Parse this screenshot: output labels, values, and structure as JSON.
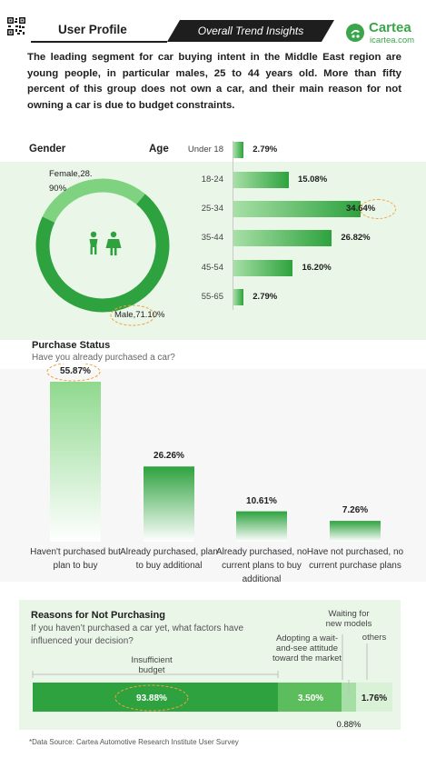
{
  "header": {
    "title": "User Profile",
    "banner": "Overall Trend Insights",
    "brand_name": "Cartea",
    "brand_url": "icartea.com"
  },
  "intro": "The leading segment for car buying intent in the Middle East region are young people, in particular males, 25 to 44 years old. More than fifty percent of this group does not own a car, and their main reason for not owning a car is due to budget constraints.",
  "colors": {
    "primary_green": "#2ea23e",
    "light_green": "#7fd280",
    "pale_green": "#eaf6e8",
    "highlight_orange": "#f0a23a"
  },
  "chart_data": [
    {
      "type": "pie",
      "title": "Gender",
      "categories": [
        "Female",
        "Male"
      ],
      "values": [
        28.9,
        71.1
      ],
      "labels": [
        "Female,28.\n90%",
        "Male,71.10%"
      ],
      "center_icon": "female-male-people-icon"
    },
    {
      "type": "bar",
      "orientation": "horizontal",
      "title": "Age",
      "categories": [
        "Under 18",
        "18-24",
        "25-34",
        "35-44",
        "45-54",
        "55-65"
      ],
      "values": [
        2.79,
        15.08,
        34.64,
        26.82,
        16.2,
        2.79
      ],
      "value_labels": [
        "2.79%",
        "15.08%",
        "34.64%",
        "26.82%",
        "16.20%",
        "2.79%"
      ],
      "highlight": "25-34"
    },
    {
      "type": "bar",
      "title": "Purchase Status",
      "subtitle": "Have you already purchased a car?",
      "categories": [
        "Haven't purchased but plan to buy",
        "Already purchased, plan to buy additional",
        "Already purchased, no current plans to buy additional",
        "Have not purchased, no current purchase plans"
      ],
      "values": [
        55.87,
        26.26,
        10.61,
        7.26
      ],
      "value_labels": [
        "55.87%",
        "26.26%",
        "10.61%",
        "7.26%"
      ],
      "highlight": "Haven't purchased but plan to buy"
    },
    {
      "type": "bar",
      "orientation": "horizontal-stacked",
      "title": "Reasons for Not Purchasing",
      "subtitle": "If you haven’t purchased a car yet, what factors have influenced your decision?",
      "categories": [
        "Insufficient budget",
        "Adopting a wait-and-see attitude toward the market",
        "Waiting for new models",
        "others"
      ],
      "values": [
        93.88,
        3.5,
        0.88,
        1.76
      ],
      "value_labels": [
        "93.88%",
        "3.50%",
        "0.88%",
        "1.76%"
      ],
      "highlight": "Insufficient budget"
    }
  ],
  "gender": {
    "title": "Gender",
    "female_label": "Female,28.\n90%",
    "male_label": "Male,71.10%"
  },
  "age": {
    "title": "Age",
    "labels": [
      "Under 18",
      "18-24",
      "25-34",
      "35-44",
      "45-54",
      "55-65"
    ],
    "value_labels": [
      "2.79%",
      "15.08%",
      "34.64%",
      "26.82%",
      "16.20%",
      "2.79%"
    ]
  },
  "purchase": {
    "title": "Purchase Status",
    "subtitle": "Have you already purchased a car?",
    "categories": [
      "Haven't purchased but plan to buy",
      "Already purchased, plan to buy additional",
      "Already purchased, no current plans to buy additional",
      "Have not purchased, no current purchase plans"
    ],
    "value_labels": [
      "55.87%",
      "26.26%",
      "10.61%",
      "7.26%"
    ]
  },
  "reasons": {
    "title": "Reasons for Not Purchasing",
    "subtitle": "If you haven’t purchased a car yet, what factors have influenced your decision?",
    "labels": {
      "budget": "Insufficient\nbudget",
      "wait": "Adopting a wait-\nand-see attitude\ntoward the market",
      "models": "Waiting for\nnew models",
      "others": "others"
    },
    "value_labels": {
      "budget": "93.88%",
      "wait": "3.50%",
      "models": "0.88%",
      "others": "1.76%"
    }
  },
  "source": "*Data Source: Cartea Automotive Research Institute User Survey"
}
